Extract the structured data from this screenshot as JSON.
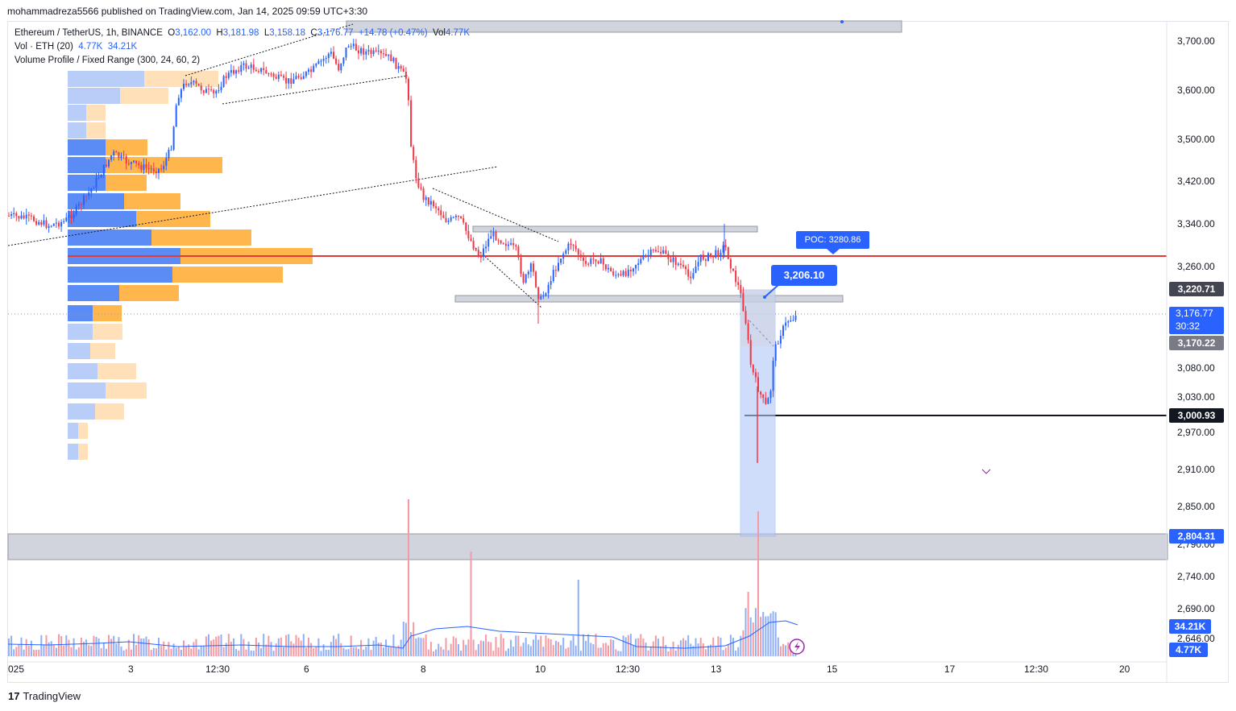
{
  "header": {
    "published_by": "mohammadreza5566 published on TradingView.com, Jan 14, 2025 09:59 UTC+3:30"
  },
  "legend": {
    "symbol": "Ethereum / TetherUS, 1h, BINANCE",
    "open_label": "O",
    "open": "3,162.00",
    "high_label": "H",
    "high": "3,181.98",
    "low_label": "L",
    "low": "3,158.18",
    "close_label": "C",
    "close": "3,176.77",
    "change": "+14.78 (+0.47%)",
    "vol_label": "Vol",
    "vol": "4.77K",
    "vol_indicator": "Vol · ETH (20)",
    "vol_ind_value1": "4.77K",
    "vol_ind_value2": "34.21K",
    "vp_indicator": "Volume Profile / Fixed Range (300, 24, 60, 2)"
  },
  "price_axis": {
    "ticks": [
      "3,700.00",
      "3,600.00",
      "3,500.00",
      "3,420.00",
      "3,340.00",
      "3,260.00",
      "3,080.00",
      "3,030.00",
      "2,970.00",
      "2,910.00",
      "2,850.00",
      "2,790.00",
      "2,740.00",
      "2,690.00",
      "2,646.00"
    ],
    "tags": {
      "level1": "3,220.71",
      "last_price": "3,176.77",
      "countdown": "30:32",
      "level2": "3,170.22",
      "level3": "3,000.93",
      "level4": "2,804.31",
      "vol_ma": "34.21K",
      "vol_now": "4.77K"
    }
  },
  "time_axis": {
    "ticks": [
      "025",
      "3",
      "12:30",
      "6",
      "8",
      "10",
      "12:30",
      "13",
      "15",
      "17",
      "12:30",
      "20"
    ]
  },
  "annotations": {
    "poc": "POC: 3280.86",
    "price_label": "3,206.10"
  },
  "branding": {
    "logo": "17",
    "name": "TradingView"
  },
  "colors": {
    "up": "#2962ff",
    "down": "#f23645",
    "vp_up": "#5b8cf5",
    "vp_down": "#ffb74d",
    "red_line": "#e53935",
    "zone": "#c8c8c8",
    "accent": "#2962ff"
  }
}
